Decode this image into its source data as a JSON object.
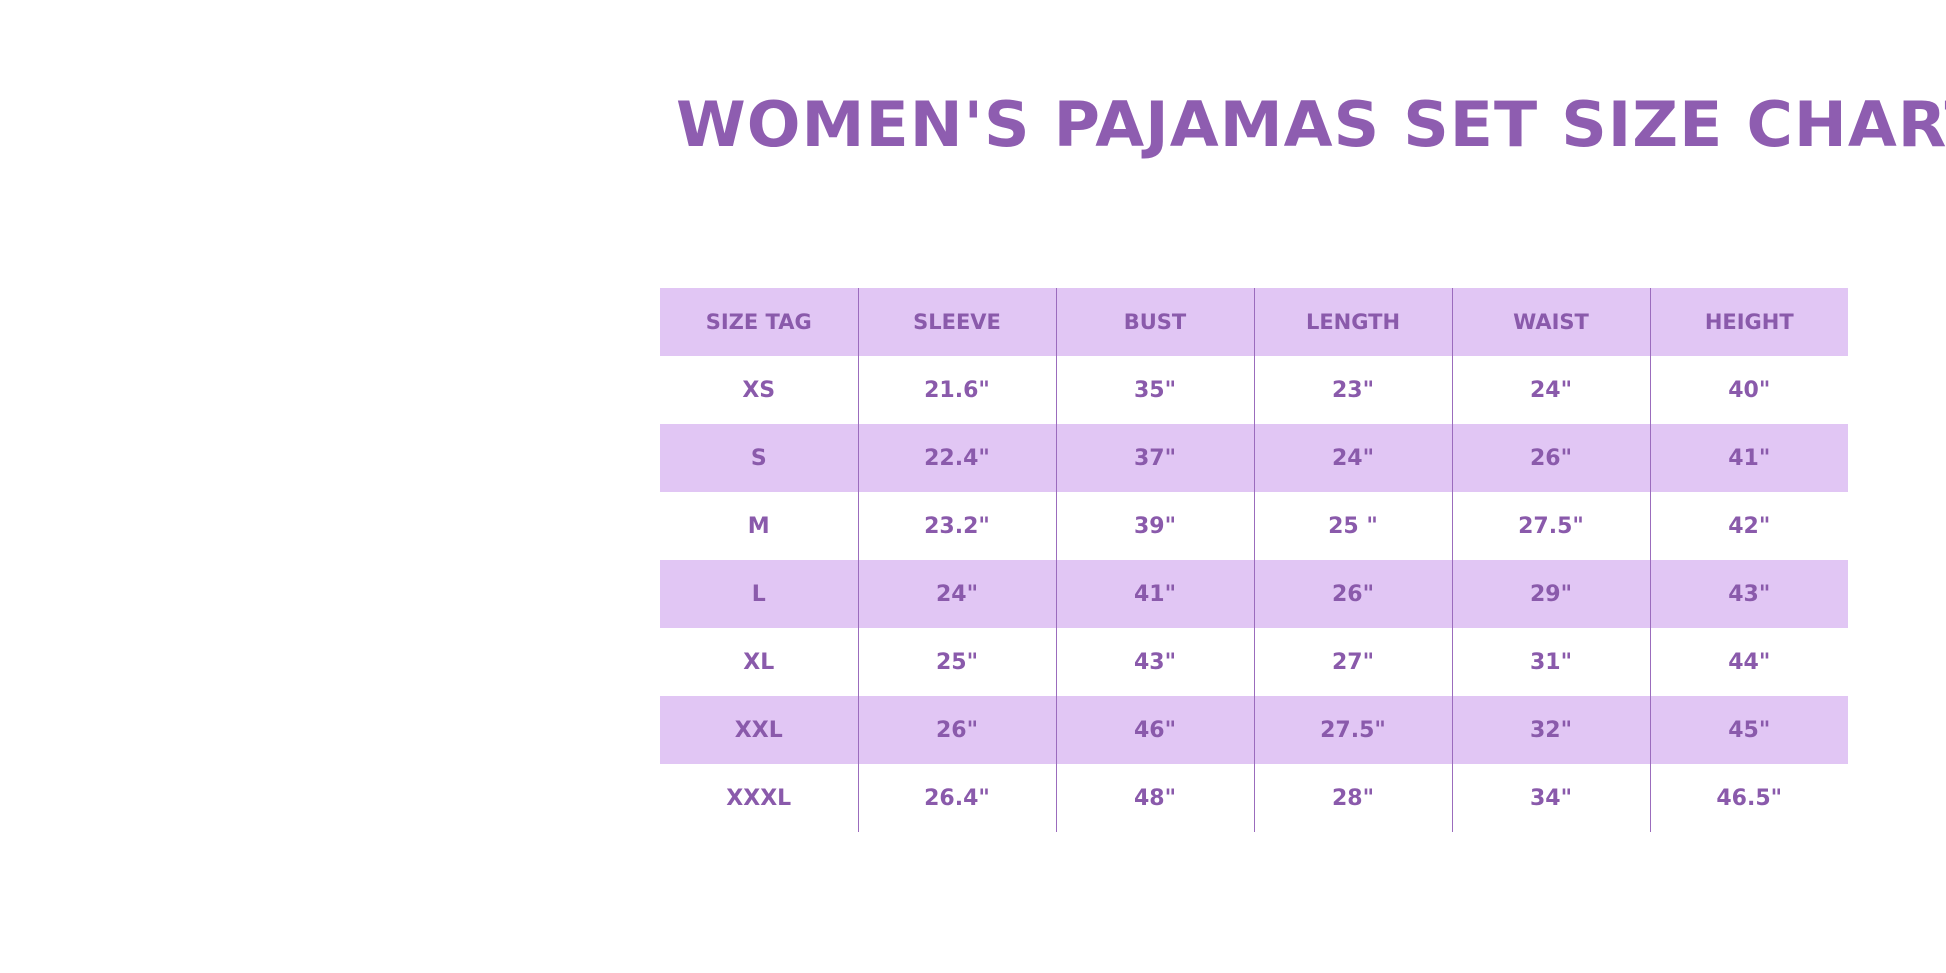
{
  "title": "WOMEN'S PAJAMAS SET SIZE CHART",
  "colors": {
    "text": "#8a5aab",
    "shade": "#e1c6f4"
  },
  "table": {
    "headers": [
      "SIZE TAG",
      "SLEEVE",
      "BUST",
      "LENGTH",
      "WAIST",
      "HEIGHT"
    ],
    "rows": [
      [
        "XS",
        "21.6\"",
        "35\"",
        "23\"",
        "24\"",
        "40\""
      ],
      [
        "S",
        "22.4\"",
        "37\"",
        "24\"",
        "26\"",
        "41\""
      ],
      [
        "M",
        "23.2\"",
        "39\"",
        "25 \"",
        "27.5\"",
        "42\""
      ],
      [
        "L",
        "24\"",
        "41\"",
        "26\"",
        "29\"",
        "43\""
      ],
      [
        "XL",
        "25\"",
        "43\"",
        "27\"",
        "31\"",
        "44\""
      ],
      [
        "XXL",
        "26\"",
        "46\"",
        "27.5\"",
        "32\"",
        "45\""
      ],
      [
        "XXXL",
        "26.4\"",
        "48\"",
        "28\"",
        "34\"",
        "46.5\""
      ]
    ]
  }
}
